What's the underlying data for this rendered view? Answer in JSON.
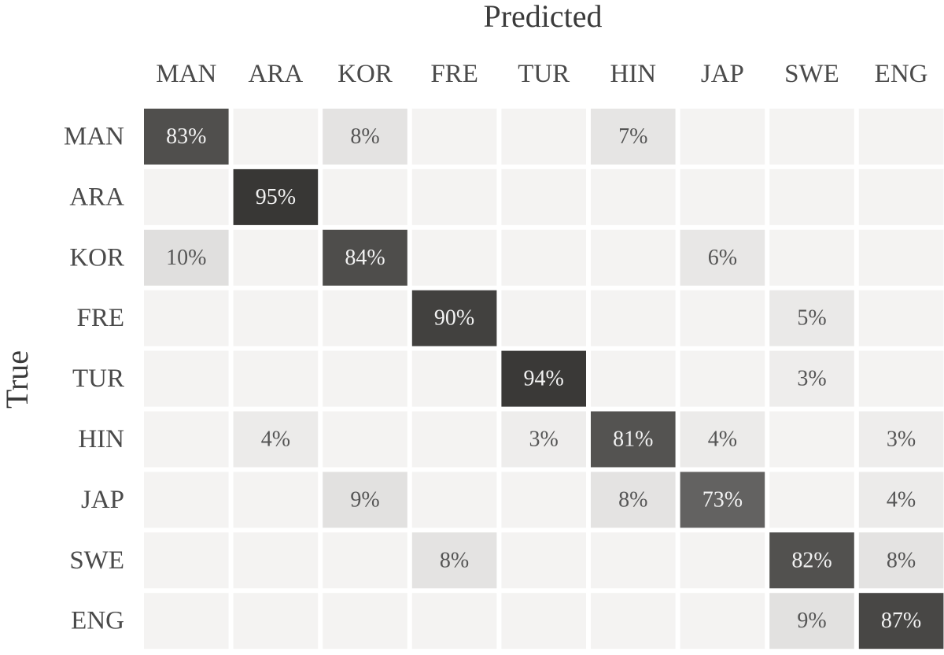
{
  "chart_data": {
    "type": "heatmap",
    "xlabel": "Predicted",
    "ylabel": "True",
    "x_categories": [
      "MAN",
      "ARA",
      "KOR",
      "FRE",
      "TUR",
      "HIN",
      "JAP",
      "SWE",
      "ENG"
    ],
    "y_categories": [
      "MAN",
      "ARA",
      "KOR",
      "FRE",
      "TUR",
      "HIN",
      "JAP",
      "SWE",
      "ENG"
    ],
    "unit": "%",
    "values": [
      [
        83,
        null,
        8,
        null,
        null,
        7,
        null,
        null,
        null
      ],
      [
        null,
        95,
        null,
        null,
        null,
        null,
        null,
        null,
        null
      ],
      [
        10,
        null,
        84,
        null,
        null,
        null,
        6,
        null,
        null
      ],
      [
        null,
        null,
        null,
        90,
        null,
        null,
        null,
        5,
        null
      ],
      [
        null,
        null,
        null,
        null,
        94,
        null,
        null,
        3,
        null
      ],
      [
        null,
        4,
        null,
        null,
        3,
        81,
        4,
        null,
        3
      ],
      [
        null,
        null,
        9,
        null,
        null,
        8,
        73,
        null,
        4
      ],
      [
        null,
        null,
        null,
        8,
        null,
        null,
        null,
        82,
        8
      ],
      [
        null,
        null,
        null,
        null,
        null,
        null,
        null,
        9,
        87
      ]
    ],
    "colors": {
      "empty_cell": "#f4f3f2",
      "min": "#f4f3f2",
      "max": "#2e2d2b"
    }
  }
}
